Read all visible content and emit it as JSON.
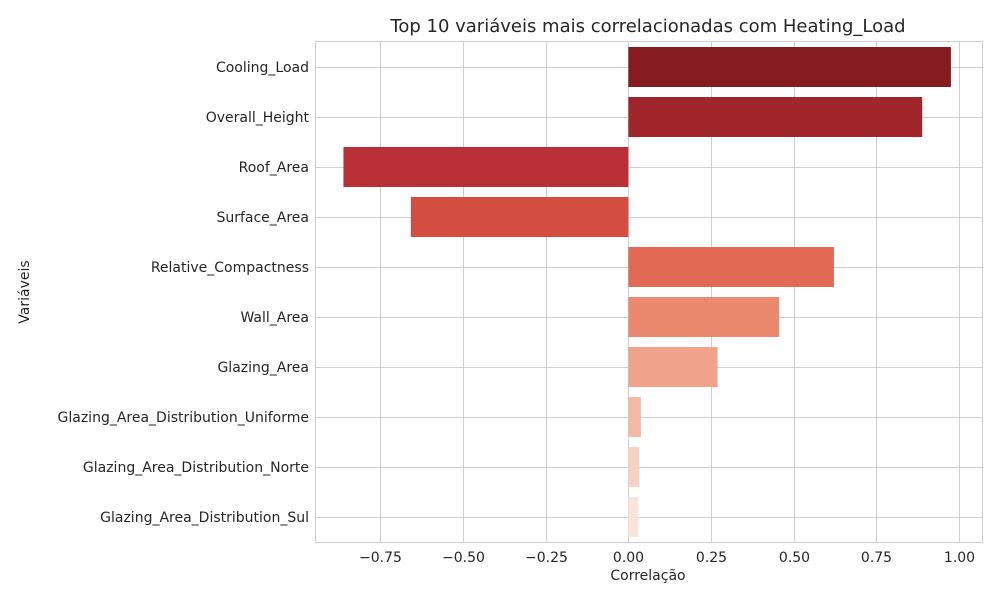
{
  "chart_data": {
    "type": "bar",
    "orientation": "horizontal",
    "title": "Top 10 variáveis mais correlacionadas com Heating_Load",
    "xlabel": "Correlação",
    "ylabel": "Variáveis",
    "xlim": [
      -0.945,
      1.07
    ],
    "xticks": [
      -0.75,
      -0.5,
      -0.25,
      0.0,
      0.25,
      0.5,
      0.75,
      1.0
    ],
    "xtick_labels": [
      "−0.75",
      "−0.50",
      "−0.25",
      "0.00",
      "0.25",
      "0.50",
      "0.75",
      "1.00"
    ],
    "categories": [
      "Cooling_Load",
      "Overall_Height",
      "Roof_Area",
      "Surface_Area",
      "Relative_Compactness",
      "Wall_Area",
      "Glazing_Area",
      "Glazing_Area_Distribution_Uniforme",
      "Glazing_Area_Distribution_Norte",
      "Glazing_Area_Distribution_Sul"
    ],
    "values": [
      0.976,
      0.889,
      -0.862,
      -0.658,
      0.622,
      0.456,
      0.27,
      0.038,
      0.033,
      0.03
    ],
    "colors": [
      "#851c22",
      "#a1262c",
      "#bb3036",
      "#d34d40",
      "#e26a54",
      "#ea896d",
      "#f0a38a",
      "#f3bba6",
      "#f6d1c1",
      "#f9e4d9"
    ],
    "grid": true
  }
}
